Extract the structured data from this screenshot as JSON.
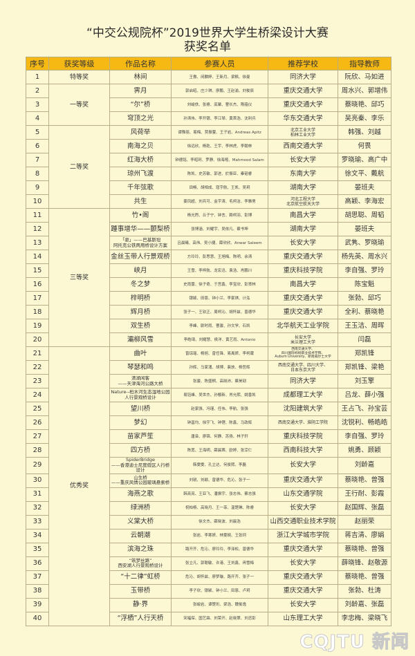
{
  "title_line1": "“中交公规院杯”2019世界大学生桥梁设计大赛",
  "title_line2": "获奖名单",
  "headers": [
    "序号",
    "获奖等级",
    "作品名称",
    "参赛人员",
    "推荐学校",
    "指导教师"
  ],
  "colors": {
    "background": "#fdf8d4",
    "header": "#f6b914",
    "border": "#b9ad86"
  },
  "rows": [
    {
      "no": "1",
      "level": "特等奖",
      "work": "林间",
      "members": "王傲、闵麟婷、王新月、梁枫、徐曼",
      "school": "同济大学",
      "advisor": "阮欣、马如进"
    },
    {
      "no": "2",
      "level": "一等奖",
      "work": "霁月",
      "members": "郭启昭、庄少琪、廖鹏、王赵渝、刘俊辰",
      "school": "重庆交通大学",
      "advisor": "周水兴、郭增伟"
    },
    {
      "no": "3",
      "level": "一等奖",
      "work": "“尔”桥",
      "members": "刘峻佚、张睿、底聚、曹长杰、隋蕴仪",
      "school": "重庆交通大学",
      "advisor": "蔡晓艳、邱巧"
    },
    {
      "no": "4",
      "level": "一等奖",
      "work": "穹顶之光",
      "members": "孙涛伟、李开银、李江琴、黄首浩、沈利兵",
      "school": "华东交通大学",
      "advisor": "吴亮秦、李乐"
    },
    {
      "no": "5",
      "level": "二等奖",
      "work": "风荷举",
      "members": "谭豫丽、易梅、贾振蓥、王子岩、Andreas Apitz",
      "school": "北京工业大学\n柏林工业大学",
      "advisor": "韩强、刘越"
    },
    {
      "no": "6",
      "level": "二等奖",
      "work": "南海之贝",
      "members": "徐远欣、杨乾、王宇、李林虎、李翰林",
      "school": "西南交通大学",
      "advisor": "何畏"
    },
    {
      "no": "7",
      "level": "二等奖",
      "work": "红海大桥",
      "members": "钟德铭、李昭珂、罗静、徐海嘧、Mahmood Salam",
      "school": "长安大学",
      "advisor": "罗晓瑜、高广中"
    },
    {
      "no": "8",
      "level": "二等奖",
      "work": "琼州飞渡",
      "members": "陈凯、史苏敏、郭进、於振亚、秦韬睿",
      "school": "东南大学",
      "advisor": "徐文平、戴航"
    },
    {
      "no": "9",
      "level": "二等奖",
      "work": "千年弦歌",
      "members": "田畅、胡相成、寇宇航、王凯、吴玥",
      "school": "湖南大学",
      "advisor": "晏班夫"
    },
    {
      "no": "10",
      "level": "二等奖",
      "work": "共生",
      "members": "姜凤超、刘兵可、金宇涛、毛柯洁、李雅男",
      "school": "河北工程大学\n北京航空航天大学",
      "advisor": "高颖、李海宏"
    },
    {
      "no": "11",
      "level": "三等奖",
      "work": "竹•阁",
      "members": "杨光煦、丘子宁、钟言、赖柯羽、彭博",
      "school": "南昌大学",
      "advisor": "胡思聪、周韬"
    },
    {
      "no": "12",
      "level": "三等奖",
      "work": "踵事增华——颤梨桥",
      "members": "张博涵、刘耀宇、吴依凡、蔡书坤",
      "school": "湖南大学",
      "advisor": "晏班夫"
    },
    {
      "no": "13",
      "level": "三等奖",
      "work": "「驱」——巴基斯坦\n阿托克公铁两用桥设计方案",
      "members": "吕晨曦、高伟、吴小捷、薛欣欣、Anwar Saleem",
      "school": "长安大学",
      "advisor": "武隽、罗晓瑜"
    },
    {
      "no": "14",
      "level": "三等奖",
      "work": "金丝玉带人行景观桥",
      "members": "方玲玲、彭思慧、王旭梅、陈明、余涛",
      "school": "重庆交通大学",
      "advisor": "杨先英、周水兴"
    },
    {
      "no": "15",
      "level": "三等奖",
      "work": "峡月",
      "members": "王雪、李梓航、龙宏迅、袁浩、肖鹏川",
      "school": "重庆科技学院",
      "advisor": "李自强、罗玲"
    },
    {
      "no": "16",
      "level": "三等奖",
      "work": "冬之梦",
      "members": "史雨蕾、徐子奇、于宫鑫、李宝欣、彭贤林",
      "school": "南昌大学",
      "advisor": "陈宝魁"
    },
    {
      "no": "17",
      "level": "三等奖",
      "work": "梓明桥",
      "members": "银颖、田恩、钟小兰、李家琪、计泓",
      "school": "重庆交通大学",
      "advisor": "张勃、邱巧"
    },
    {
      "no": "18",
      "level": "三等奖",
      "work": "辉月桥",
      "members": "张子一、王钦正、周柯沁、胡怀兹、曾德华",
      "school": "重庆交通大学",
      "advisor": "全利、蔡晓艳"
    },
    {
      "no": "19",
      "level": "三等奖",
      "work": "双生桥",
      "members": "李峰、尉时雨、曹骏、孙文学、石凯",
      "school": "北华航天工业学院",
      "advisor": "王玉洁、周晖"
    },
    {
      "no": "20",
      "level": "三等奖",
      "work": "灞柳风雪",
      "members": "李皓琦、刘耀慧、侯洋、黄艺雨、Antonio",
      "school": "长安大学\n米兰理工大学",
      "advisor": "闫磊"
    },
    {
      "no": "21",
      "level": "优秀奖",
      "work": "曲叶",
      "members": "曾琼瑶、杨旭、曾任锋、易禹妍、李柯葳",
      "school": "西南交通大学、\n四川国际标榜职业技术学院、\nAuburn University、新南威尔士大学",
      "advisor": "郑凯锋"
    },
    {
      "no": "22",
      "level": "优秀奖",
      "work": "琴瑟和鸣",
      "members": "孙辉、马家涌、胡博、裴放、杨哲辉",
      "school": "西南交通大学、四川大学、\n日本东京大学",
      "advisor": "郑凯锋、梁艳"
    },
    {
      "no": "23",
      "level": "优秀奖",
      "work": "清湖闲客\n——天津海河公路大桥",
      "members": "张骏、陈盛桐、高晓沛、蔡昊韧",
      "school": "同济大学",
      "advisor": "刘玉擎"
    },
    {
      "no": "24",
      "level": "优秀奖",
      "work": "Nature--桕木河生态湿地公园\n人行景观桥设计",
      "members": "易钰峰、吴世杰、孙樱新、肖允熙、姚香凯",
      "school": "成都理工大学",
      "advisor": "吕龙、薛小强"
    },
    {
      "no": "25",
      "level": "优秀奖",
      "work": "望川桥",
      "members": "赵家强、冯瑾、任伟、李航、张强",
      "school": "沈阳建筑大学",
      "advisor": "王占飞、孙宝芸"
    },
    {
      "no": "26",
      "level": "优秀奖",
      "work": "梦幻",
      "members": "钟昌均、徐宇飞、钟锂、陈鑫、马政辉",
      "school": "西南交通大学、淮阴工学院",
      "advisor": "沈锐利、畅皓皓"
    },
    {
      "no": "27",
      "level": "优秀奖",
      "work": "苗家芦笙",
      "members": "唐枭、廖锦、何静、苏扬、林子轩",
      "school": "重庆科技学院",
      "advisor": "李自强、罗玲"
    },
    {
      "no": "28",
      "level": "优秀奖",
      "work": "四方桥",
      "members": "陈宽、王海明、薛晨茜、欧婷、张淙仁",
      "school": "西南科技大学",
      "advisor": "姚勇、顾颖"
    },
    {
      "no": "29",
      "level": "优秀奖",
      "work": "SpiderBridge\n——香港迪士尼度假区人行桥设计",
      "members": "韩雯雯、孔立达、何俊熙、李磊",
      "school": "长安大学",
      "advisor": "刘龄嘉"
    },
    {
      "no": "30",
      "level": "优秀奖",
      "work": "山生桥\n——重庆风情公园玻璃悬索桥",
      "members": "刘锐、刘颖、曾德华、危沁、张子一",
      "school": "重庆交通大学",
      "advisor": "蔡晓艳、曾强"
    },
    {
      "no": "31",
      "level": "优秀奖",
      "work": "海燕之歌",
      "members": "韩亮亮、王亚飞、潘振宇、张志伟、蔡志强",
      "school": "山东交通学院",
      "advisor": "王行耐、彭霞"
    },
    {
      "no": "32",
      "level": "优秀奖",
      "work": "绿洲桥",
      "members": "祝柏杨、高晓月、王一菲、温楚琳、陈睿",
      "school": "长安大学",
      "advisor": "赵国辉、张磊"
    },
    {
      "no": "33",
      "level": "优秀奖",
      "work": "义棠大桥",
      "members": "徐文杰、薛晓波、刘晨浩",
      "school": "山西交通职业技术学院",
      "advisor": "赵丽荣"
    },
    {
      "no": "34",
      "level": "优秀奖",
      "work": "云朝潮",
      "members": "张岩、李寒妍、林雯婉、王张珂",
      "school": "浙江大学城市学院",
      "advisor": "蒋吉清、廖娟"
    },
    {
      "no": "35",
      "level": "优秀奖",
      "work": "滨海之珠",
      "members": "路开齐、危沁、廖玲玲、李泽松、曾德华",
      "school": "重庆交通大学",
      "advisor": "蔡晓艳、曾强"
    },
    {
      "no": "36",
      "level": "优秀奖",
      "work": "“筑梦丝路”\n西安湖人行景观桥设计",
      "members": "张立凡、郭聪敏、许港、王刘鑫、冉雪梅",
      "school": "长安大学",
      "advisor": "薛晓锋、赵敬源"
    },
    {
      "no": "37",
      "level": "优秀奖",
      "work": "“十二律”虹桥",
      "members": "危沁、胡怀兹、廖梦璇、路开齐、张子一",
      "school": "重庆交通大学",
      "advisor": "蔡晓艳、曾强"
    },
    {
      "no": "38",
      "level": "优秀奖",
      "work": "玉带桥",
      "members": "李子欣、银颖、钟小兰、田恩、卢玥",
      "school": "重庆交通大学",
      "advisor": "张勃、杜涛"
    },
    {
      "no": "39",
      "level": "优秀奖",
      "work": "静·界",
      "members": "张峻岩、谭楚珩、梁浩、魏俊逸",
      "school": "长安大学",
      "advisor": "刘龄嘉、张磊"
    },
    {
      "no": "40",
      "level": "优秀奖",
      "work": "“浮栖”人行天桥",
      "members": "宋福琛、国艺霖、刘荣开、赵晓翠、刘恣彭",
      "school": "山东理工大学",
      "advisor": "李忠梅、梁晓飞"
    }
  ],
  "watermark": "CQJTU 新闻"
}
